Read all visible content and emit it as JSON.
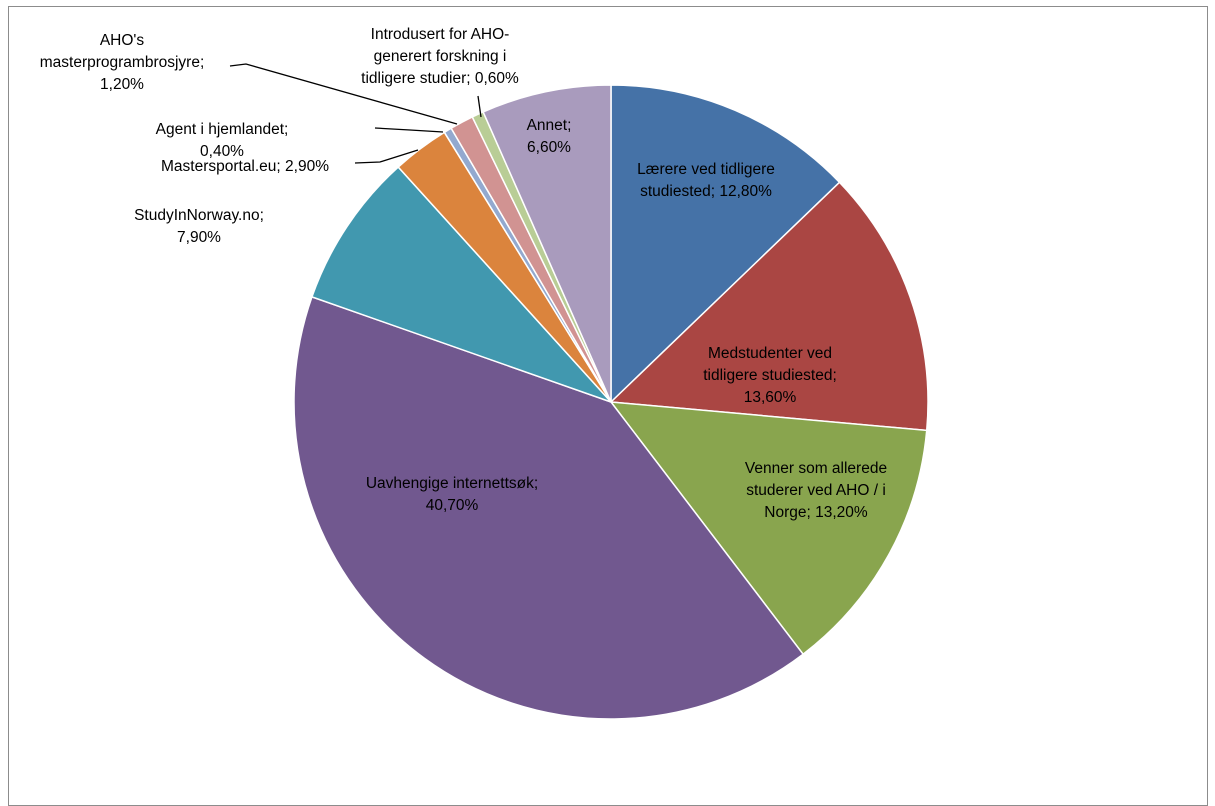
{
  "chart_data": {
    "type": "pie",
    "title": "",
    "slices": [
      {
        "label": "Lærere ved tidligere studiested",
        "value": 12.8,
        "value_label": "12,80%",
        "color": "#4572A7",
        "label_lines": [
          "Lærere ved tidligere",
          "studiested; 12,80%"
        ]
      },
      {
        "label": "Medstudenter ved tidligere studiested",
        "value": 13.6,
        "value_label": "13,60%",
        "color": "#AA4643",
        "label_lines": [
          "Medstudenter ved",
          "tidligere studiested;",
          "13,60%"
        ]
      },
      {
        "label": "Venner som allerede studerer ved AHO / i Norge",
        "value": 13.2,
        "value_label": "13,20%",
        "color": "#89A54E",
        "label_lines": [
          "Venner som allerede",
          "studerer ved AHO / i",
          "Norge; 13,20%"
        ]
      },
      {
        "label": "Uavhengige internettsøk",
        "value": 40.7,
        "value_label": "40,70%",
        "color": "#71588F",
        "label_lines": [
          "Uavhengige internettsøk;",
          "40,70%"
        ]
      },
      {
        "label": "StudyInNorway.no",
        "value": 7.9,
        "value_label": "7,90%",
        "color": "#4198AF",
        "label_lines": [
          "StudyInNorway.no;",
          "7,90%"
        ]
      },
      {
        "label": "Mastersportal.eu",
        "value": 2.9,
        "value_label": "2,90%",
        "color": "#DB843D",
        "label_lines": [
          "Mastersportal.eu; 2,90%"
        ]
      },
      {
        "label": "Agent i hjemlandet",
        "value": 0.4,
        "value_label": "0,40%",
        "color": "#93A9CF",
        "label_lines": [
          "Agent i hjemlandet;",
          "0,40%"
        ]
      },
      {
        "label": "AHO's masterprogrambrosjyre",
        "value": 1.2,
        "value_label": "1,20%",
        "color": "#D19392",
        "label_lines": [
          "AHO's",
          "masterprogrambrosjyre;",
          "1,20%"
        ]
      },
      {
        "label": "Introdusert for AHO-generert forskning i tidligere studier",
        "value": 0.6,
        "value_label": "0,60%",
        "color": "#B9CD96",
        "label_lines": [
          "Introdusert for AHO-",
          "generert forskning i",
          "tidligere studier; 0,60%"
        ]
      },
      {
        "label": "Annet",
        "value": 6.6,
        "value_label": "6,60%",
        "color": "#A99BBD",
        "label_lines": [
          "Annet;",
          "6,60%"
        ]
      }
    ],
    "start_angle": "12 o'clock",
    "direction": "clockwise",
    "legend": "none",
    "data_labels": "category; percentage"
  }
}
